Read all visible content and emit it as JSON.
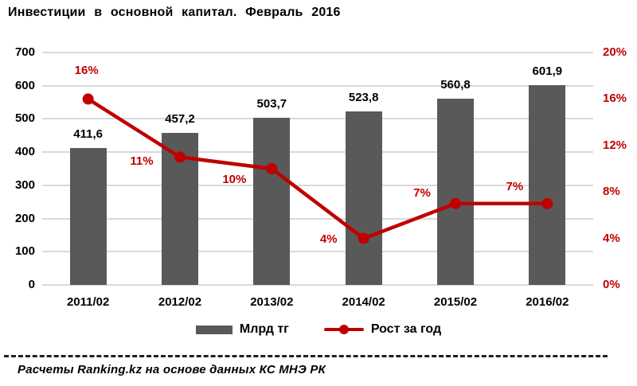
{
  "chart_data": {
    "type": "bar+line combo",
    "title": "Инвестиции в основной капитал. Февраль 2016",
    "categories": [
      "2011/02",
      "2012/02",
      "2013/02",
      "2014/02",
      "2015/02",
      "2016/02"
    ],
    "series": [
      {
        "name": "Млрд тг",
        "type": "bar",
        "axis": "left",
        "values": [
          411.6,
          457.2,
          503.7,
          523.8,
          560.8,
          601.9
        ],
        "labels": [
          "411,6",
          "457,2",
          "503,7",
          "523,8",
          "560,8",
          "601,9"
        ],
        "color": "#595959"
      },
      {
        "name": "Рост за год",
        "type": "line",
        "axis": "right",
        "values": [
          16,
          11,
          10,
          4,
          7,
          7
        ],
        "labels": [
          "16%",
          "11%",
          "10%",
          "4%",
          "7%",
          "7%"
        ],
        "color": "#c00000",
        "label_offsets": [
          [
            -2,
            -35
          ],
          [
            -48,
            6
          ],
          [
            -47,
            14
          ],
          [
            -44,
            1
          ],
          [
            -42,
            -13
          ],
          [
            -41,
            -21
          ]
        ]
      }
    ],
    "left_axis": {
      "min": 0,
      "max": 700,
      "step": 100,
      "ticks": [
        "0",
        "100",
        "200",
        "300",
        "400",
        "500",
        "600",
        "700"
      ],
      "color": "#000000"
    },
    "right_axis": {
      "min": 0,
      "max": 20,
      "step": 4,
      "ticks": [
        "0%",
        "4%",
        "8%",
        "12%",
        "16%",
        "20%"
      ],
      "color": "#c00000"
    },
    "grid": true,
    "gridline_color": "#d9d9d9",
    "legend_position": "bottom"
  },
  "legend": {
    "bar_label": "Млрд тг",
    "line_label": "Рост за год"
  },
  "footer": {
    "source": "Расчеты Ranking.kz на основе данных КС МНЭ РК"
  },
  "colors": {
    "bar": "#595959",
    "line": "#c00000",
    "grid": "#d9d9d9",
    "right_axis_text": "#c00000",
    "text": "#000000"
  }
}
